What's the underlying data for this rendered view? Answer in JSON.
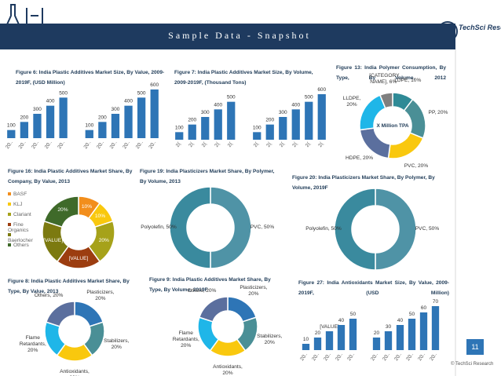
{
  "header": {
    "title": "Sample Data - Snapshot",
    "logo": "TechSci Research"
  },
  "page_number": "11",
  "footer": "© TechSci Research",
  "chart_data": [
    {
      "type": "bar",
      "title": "Figure 6: India Plastic Additives Market Size, By Value, 2009-2019F, (USD Million)",
      "categories": [
        "20..",
        "20..",
        "20..",
        "20..",
        "20..",
        "20..",
        "20..",
        "20..",
        "20..",
        "20..",
        "20.."
      ],
      "series": [
        {
          "color": "#2e75b6",
          "values": [
            100,
            200,
            300,
            400,
            500,
            null,
            null,
            null,
            null,
            null,
            null
          ]
        },
        {
          "color": "#2e75b6",
          "values": [
            null,
            null,
            null,
            null,
            null,
            100,
            200,
            300,
            400,
            500,
            600
          ]
        }
      ]
    },
    {
      "type": "bar",
      "title": "Figure 7: India Plastic Additives Market Size, By Volume, 2009-2019F, (Thousand Tons)",
      "categories": [
        "2(",
        "2(",
        "2(",
        "2(",
        "2(",
        "2(",
        "2(",
        "2(",
        "2(",
        "2(",
        "2("
      ],
      "series": [
        {
          "color": "#2e75b6",
          "values": [
            100,
            200,
            300,
            400,
            500,
            null,
            null,
            null,
            null,
            null,
            null
          ]
        },
        {
          "color": "#2e75b6",
          "values": [
            null,
            null,
            null,
            null,
            null,
            100,
            200,
            300,
            400,
            500,
            600
          ]
        }
      ]
    },
    {
      "type": "donut",
      "title": "Figure 13: India Polymer Consumption, By Type, By Volume, 2012",
      "center_label": "X Million TPA",
      "labels": [
        "LDPE, 10%",
        "PP, 20%",
        "PVC, 20%",
        "HDPE, 20%",
        "LLDPE, 20%",
        "[CATEGORY NAME], 6%"
      ],
      "values": [
        10,
        20,
        20,
        20,
        20,
        6
      ],
      "colors": [
        "#2f8a96",
        "#4a8f96",
        "#f9c80e",
        "#5b6f9e",
        "#1fb6e8",
        "#7f7f7f"
      ]
    },
    {
      "type": "donut",
      "title": "Figure 16: India Plastic Additives Market Share, By Company, By Value, 2013",
      "categories": [
        "BASF",
        "KLJ",
        "Clariant",
        "Fine Organics",
        "Baerlocher",
        "Others"
      ],
      "values": [
        10,
        10,
        20,
        20,
        20,
        20
      ],
      "value_labels": [
        "10%",
        "10%",
        "20%",
        "[VALUE]",
        "[VALUE]",
        "20%"
      ],
      "colors": [
        "#f28e1c",
        "#f9c80e",
        "#a6a21a",
        "#9c3d10",
        "#7c7a10",
        "#3f6a2a"
      ]
    },
    {
      "type": "donut",
      "title": "Figure 19: India Plasticizers Market Share, By Polymer, By Volume, 2013",
      "labels": [
        "PVC, 50%",
        "Polyolefin, 50%"
      ],
      "values": [
        50,
        50
      ],
      "colors": [
        "#4f93a6",
        "#3a8a9e"
      ]
    },
    {
      "type": "donut",
      "title": "Figure 20: India Plasticizers Market Share, By Polymer, By Volume, 2019F",
      "labels": [
        "PVC, 50%",
        "Polyolefin, 50%"
      ],
      "values": [
        50,
        50
      ],
      "colors": [
        "#4f93a6",
        "#3a8a9e"
      ]
    },
    {
      "type": "donut",
      "title": "Figure 8: India Plastic Additives Market Share, By Type, By Value, 2013",
      "labels": [
        "Plasticizers, 20%",
        "Stabilizers, 20%",
        "Antioxidants, 20%",
        "Flame Retardants, 20%",
        "Others, 20%"
      ],
      "values": [
        20,
        20,
        20,
        20,
        20
      ],
      "colors": [
        "#2e75b6",
        "#4a8f96",
        "#f9c80e",
        "#1fb6e8",
        "#5b6f9e"
      ]
    },
    {
      "type": "donut",
      "title": "Figure 9: India Plastic Additives Market Share, By Type, By Volume, 2019F",
      "labels": [
        "Plasticizers, 20%",
        "Stabilizers, 20%",
        "Antioxidants, 20%",
        "Flame Retardants, 20%",
        "Others, 20%"
      ],
      "values": [
        20,
        20,
        20,
        20,
        20
      ],
      "colors": [
        "#2e75b6",
        "#4a8f96",
        "#f9c80e",
        "#1fb6e8",
        "#5b6f9e"
      ]
    },
    {
      "type": "bar",
      "title": "Figure 27: India Antioxidants Market Size, By Value, 2009-2019F, (USD Million)",
      "categories": [
        "20..",
        "20..",
        "20..",
        "20..",
        "20..",
        "20..",
        "20..",
        "20..",
        "20..",
        "20..",
        "20.."
      ],
      "series": [
        {
          "color": "#2e75b6",
          "values": [
            10,
            20,
            30,
            40,
            50,
            null,
            null,
            null,
            null,
            null,
            null
          ],
          "value_labels": [
            "10",
            "20",
            "[VALUE]",
            "40",
            "50",
            null,
            null,
            null,
            null,
            null,
            null
          ]
        },
        {
          "color": "#2e75b6",
          "values": [
            null,
            null,
            null,
            null,
            null,
            20,
            30,
            40,
            50,
            60,
            70
          ]
        }
      ]
    }
  ]
}
